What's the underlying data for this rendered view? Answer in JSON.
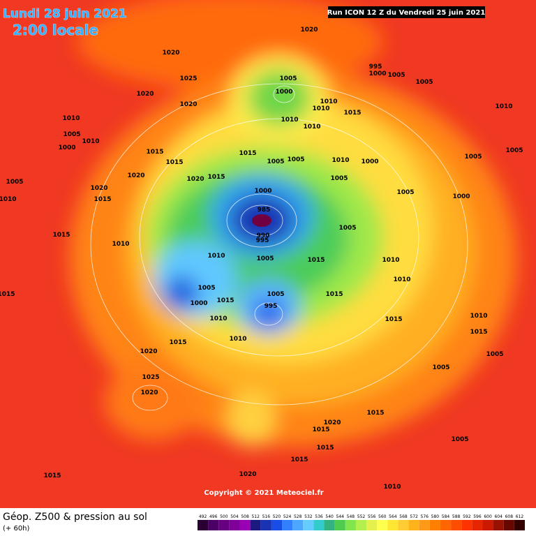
{
  "header": {
    "date": "Lundi 28 juin 2021",
    "time": "2:00 locale",
    "run": "Run ICON 12 Z du Vendredi 25 juin 2021"
  },
  "footer": {
    "title": "Géop. Z500 & pression au sol",
    "lead": "(+ 60h)",
    "copyright": "Copyright © 2021 Meteociel.fr"
  },
  "scale": {
    "values": [
      492,
      496,
      500,
      504,
      508,
      512,
      516,
      520,
      524,
      528,
      532,
      536,
      540,
      544,
      548,
      552,
      556,
      560,
      564,
      568,
      572,
      576,
      580,
      584,
      588,
      592,
      596,
      600,
      604,
      608,
      612
    ],
    "colors": [
      "#2a0033",
      "#4b0066",
      "#660080",
      "#80009a",
      "#9a00b3",
      "#1a1a80",
      "#1a33b3",
      "#1a4de6",
      "#3380ff",
      "#4da6ff",
      "#66ccff",
      "#33cccc",
      "#33b380",
      "#4dcc4d",
      "#80e64d",
      "#b3f04d",
      "#e6f04d",
      "#ffff4d",
      "#ffe633",
      "#ffcc33",
      "#ffb31a",
      "#ff9919",
      "#ff8000",
      "#ff6600",
      "#ff4d00",
      "#ff3300",
      "#e62600",
      "#cc1a00",
      "#991100",
      "#660800",
      "#330000"
    ]
  },
  "pressure_labels": [
    1020,
    1020,
    1020,
    1025,
    1020,
    1005,
    1000,
    1010,
    1010,
    1015,
    1010,
    1010,
    995,
    1000,
    1005,
    1005,
    1010,
    1010,
    1005,
    1010,
    1000,
    1015,
    1015,
    1020,
    1020,
    1015,
    1015,
    1005,
    1005,
    1010,
    1000,
    1005,
    1000,
    985,
    990,
    995,
    1005,
    1005,
    1000,
    1005,
    1005,
    1010,
    1005,
    1015,
    1010,
    1005,
    1015,
    1000,
    1005,
    995,
    1015,
    1010,
    1010,
    1010,
    1015,
    1015,
    1020,
    1025,
    1020,
    1015,
    1015,
    1015,
    1005,
    1010,
    1020,
    1010,
    1005,
    1005,
    1015,
    1020,
    1015,
    1015,
    1015,
    1015,
    1020,
    1010,
    1005,
    1010,
    1015
  ]
}
